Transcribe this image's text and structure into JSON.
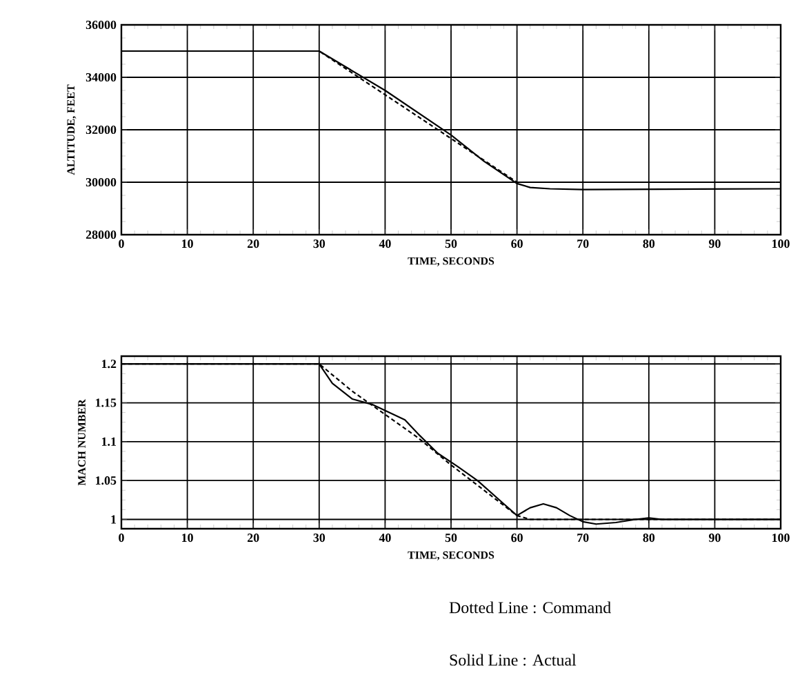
{
  "chart_data": [
    {
      "type": "line",
      "xlabel": "TIME, SECONDS",
      "ylabel": "ALTITUDE, FEET",
      "x": [
        0,
        30,
        40,
        50,
        55,
        60,
        62,
        65,
        70,
        100
      ],
      "xlim": [
        0,
        100
      ],
      "ylim": [
        28000,
        36000
      ],
      "xticks": [
        0,
        10,
        20,
        30,
        40,
        50,
        60,
        70,
        80,
        90,
        100
      ],
      "yticks": [
        28000,
        30000,
        32000,
        34000,
        36000
      ],
      "grid": true,
      "series": [
        {
          "color": "#000000",
          "line_style": "dotted",
          "x": [
            0,
            30,
            60,
            100
          ],
          "values": [
            35000,
            35000,
            30000,
            30000
          ]
        },
        {
          "color": "#000000",
          "line_style": "solid",
          "values": [
            35000,
            35000,
            33500,
            31800,
            30800,
            29950,
            29800,
            29750,
            29720,
            29750
          ]
        }
      ]
    },
    {
      "type": "line",
      "xlabel": "TIME, SECONDS",
      "ylabel": "MACH NUMBER",
      "x": [
        0,
        30,
        32,
        35,
        38,
        40,
        43,
        45,
        48,
        51,
        54,
        58,
        60,
        62,
        64,
        66,
        68,
        70,
        72,
        75,
        78,
        80,
        82,
        100
      ],
      "xlim": [
        0,
        100
      ],
      "ylim": [
        0.988,
        1.21
      ],
      "xticks": [
        0,
        10,
        20,
        30,
        40,
        50,
        60,
        70,
        80,
        90,
        100
      ],
      "yticks": [
        1,
        1.05,
        1.1,
        1.15,
        1.2
      ],
      "grid": true,
      "annotations": [
        "Dotted Line : Command",
        "Solid Line : Actual"
      ],
      "series": [
        {
          "color": "#000000",
          "line_style": "dotted",
          "x": [
            0,
            30,
            35,
            40,
            45,
            50,
            60,
            62,
            100
          ],
          "values": [
            1.2,
            1.2,
            1.165,
            1.135,
            1.105,
            1.07,
            1.005,
            1.0,
            1.0
          ]
        },
        {
          "color": "#000000",
          "line_style": "solid",
          "values": [
            1.2,
            1.2,
            1.175,
            1.155,
            1.148,
            1.14,
            1.128,
            1.11,
            1.085,
            1.068,
            1.05,
            1.02,
            1.005,
            1.015,
            1.02,
            1.015,
            1.005,
            0.997,
            0.994,
            0.996,
            1.0,
            1.002,
            1.0,
            1.0
          ]
        }
      ]
    }
  ]
}
